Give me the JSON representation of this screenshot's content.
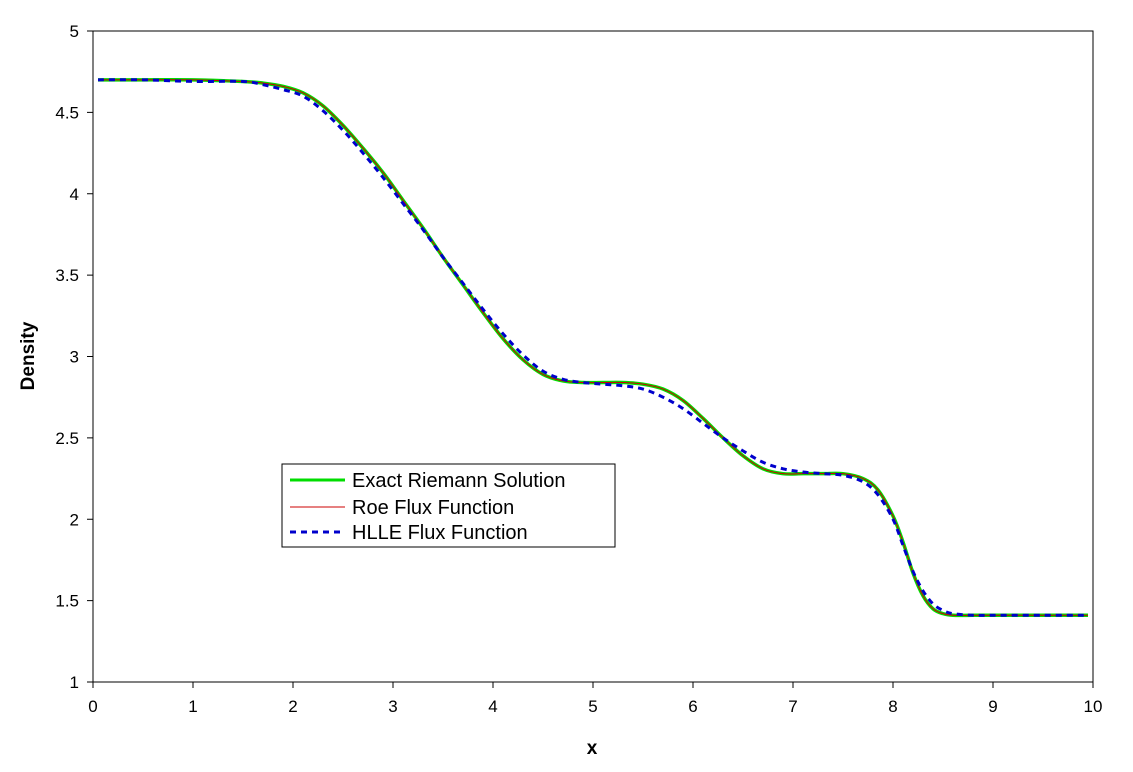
{
  "chart_data": {
    "type": "line",
    "title": "",
    "xlabel": "x",
    "ylabel": "Density",
    "xlim": [
      0,
      10
    ],
    "ylim": [
      1,
      5
    ],
    "x_ticks": [
      "0",
      "1",
      "2",
      "3",
      "4",
      "5",
      "6",
      "7",
      "8",
      "9",
      "10"
    ],
    "y_ticks": [
      "1",
      "1.5",
      "2",
      "2.5",
      "3",
      "3.5",
      "4",
      "4.5",
      "5"
    ],
    "grid": false,
    "legend": "center-left",
    "series": [
      {
        "name": "Exact Riemann Solution",
        "color": "#00dd00",
        "style": "solid-thick",
        "x": [
          0.05,
          0.5,
          1.0,
          1.5,
          1.7,
          1.9,
          2.1,
          2.3,
          2.5,
          2.7,
          2.9,
          3.1,
          3.3,
          3.5,
          3.7,
          3.9,
          4.1,
          4.3,
          4.5,
          4.7,
          4.9,
          5.1,
          5.3,
          5.5,
          5.7,
          5.9,
          6.1,
          6.3,
          6.5,
          6.7,
          6.9,
          7.1,
          7.3,
          7.5,
          7.7,
          7.85,
          8.0,
          8.1,
          8.2,
          8.3,
          8.4,
          8.5,
          8.6,
          8.8,
          9.0,
          9.5,
          9.95
        ],
        "y": [
          4.7,
          4.7,
          4.7,
          4.69,
          4.68,
          4.66,
          4.62,
          4.54,
          4.42,
          4.28,
          4.13,
          3.96,
          3.79,
          3.61,
          3.44,
          3.27,
          3.11,
          2.98,
          2.89,
          2.85,
          2.84,
          2.84,
          2.84,
          2.83,
          2.8,
          2.73,
          2.62,
          2.5,
          2.39,
          2.31,
          2.28,
          2.28,
          2.28,
          2.28,
          2.25,
          2.18,
          2.02,
          1.86,
          1.67,
          1.53,
          1.45,
          1.42,
          1.41,
          1.41,
          1.41,
          1.41,
          1.41
        ]
      },
      {
        "name": "Roe Flux Function",
        "color": "#cc0000",
        "style": "solid-thin",
        "x": [
          0.05,
          0.5,
          1.0,
          1.5,
          1.7,
          1.9,
          2.1,
          2.3,
          2.5,
          2.7,
          2.9,
          3.1,
          3.3,
          3.5,
          3.7,
          3.9,
          4.1,
          4.3,
          4.5,
          4.7,
          4.9,
          5.1,
          5.3,
          5.5,
          5.7,
          5.9,
          6.1,
          6.3,
          6.5,
          6.7,
          6.9,
          7.1,
          7.3,
          7.5,
          7.7,
          7.85,
          8.0,
          8.1,
          8.2,
          8.3,
          8.4,
          8.5,
          8.6,
          8.8,
          9.0,
          9.5,
          9.95
        ],
        "y": [
          4.7,
          4.7,
          4.7,
          4.69,
          4.68,
          4.66,
          4.62,
          4.54,
          4.42,
          4.28,
          4.13,
          3.96,
          3.79,
          3.61,
          3.44,
          3.27,
          3.11,
          2.98,
          2.89,
          2.85,
          2.84,
          2.84,
          2.84,
          2.83,
          2.8,
          2.73,
          2.62,
          2.5,
          2.39,
          2.31,
          2.28,
          2.28,
          2.28,
          2.28,
          2.25,
          2.18,
          2.02,
          1.86,
          1.67,
          1.53,
          1.45,
          1.42,
          1.41,
          1.41,
          1.41,
          1.41,
          1.41
        ]
      },
      {
        "name": "HLLE Flux Function",
        "color": "#0000cc",
        "style": "dotted",
        "x": [
          0.05,
          0.5,
          1.0,
          1.5,
          1.7,
          1.9,
          2.1,
          2.3,
          2.5,
          2.7,
          2.9,
          3.1,
          3.3,
          3.5,
          3.7,
          3.9,
          4.1,
          4.3,
          4.5,
          4.7,
          4.9,
          5.1,
          5.3,
          5.5,
          5.7,
          5.9,
          6.1,
          6.3,
          6.5,
          6.7,
          6.9,
          7.1,
          7.3,
          7.5,
          7.7,
          7.85,
          8.0,
          8.1,
          8.2,
          8.3,
          8.4,
          8.5,
          8.6,
          8.8,
          9.0,
          9.5,
          9.95
        ],
        "y": [
          4.7,
          4.7,
          4.69,
          4.69,
          4.67,
          4.64,
          4.6,
          4.51,
          4.39,
          4.25,
          4.1,
          3.94,
          3.78,
          3.61,
          3.45,
          3.29,
          3.14,
          3.01,
          2.91,
          2.86,
          2.84,
          2.83,
          2.82,
          2.8,
          2.75,
          2.68,
          2.59,
          2.5,
          2.42,
          2.35,
          2.31,
          2.29,
          2.28,
          2.27,
          2.23,
          2.15,
          2.0,
          1.84,
          1.68,
          1.56,
          1.48,
          1.44,
          1.42,
          1.41,
          1.41,
          1.41,
          1.41
        ]
      }
    ]
  }
}
